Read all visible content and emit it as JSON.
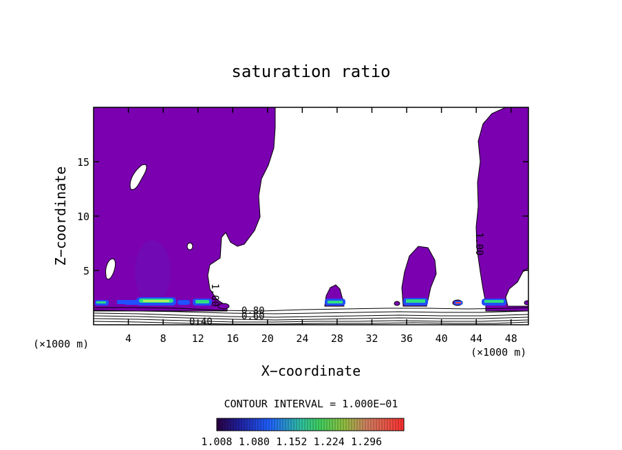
{
  "chart_data": {
    "type": "heatmap",
    "title": "saturation ratio",
    "xlabel": "X−coordinate",
    "ylabel": "Z−coordinate",
    "x_unit_left": "(×1000 m)",
    "x_unit_right": "(×1000 m)",
    "xlim": [
      0,
      50
    ],
    "ylim": [
      0,
      20
    ],
    "x_ticks": [
      "4",
      "8",
      "12",
      "16",
      "20",
      "24",
      "28",
      "32",
      "36",
      "40",
      "44",
      "48"
    ],
    "y_ticks": [
      "5",
      "10",
      "15"
    ],
    "y_tick_values": [
      5,
      10,
      15
    ],
    "x_tick_values": [
      4,
      8,
      12,
      16,
      20,
      24,
      28,
      32,
      36,
      40,
      44,
      48
    ],
    "contour_interval_label": "CONTOUR INTERVAL = 1.000E−01",
    "colorbar_labels": [
      "1.008",
      "1.080",
      "1.152",
      "1.224",
      "1.296"
    ],
    "colorbar_range": [
      1.008,
      1.296
    ],
    "contour_labels": [
      {
        "text": "1.00",
        "x": 44.0,
        "y": 8.5
      },
      {
        "text": "1.00",
        "x": 13.6,
        "y": 3.8
      },
      {
        "text": "0.80",
        "x": 17.0,
        "y": 1.0
      },
      {
        "text": "0.60",
        "x": 17.0,
        "y": 0.5
      },
      {
        "text": "0.40",
        "x": 11.0,
        "y": 0.0
      }
    ],
    "colors": {
      "saturated_region": "#7a00b0",
      "low_band": "#1a3aff",
      "mid_band": "#20e070",
      "contour_line": "#000000"
    }
  }
}
